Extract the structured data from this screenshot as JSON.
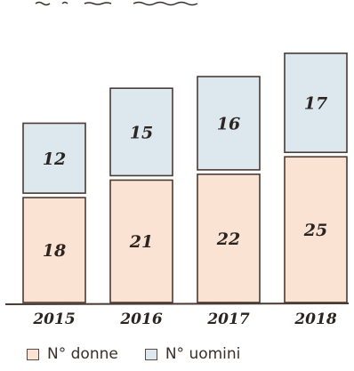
{
  "chart_data": {
    "type": "bar",
    "stacked": true,
    "categories": [
      "2015",
      "2016",
      "2017",
      "2018"
    ],
    "series": [
      {
        "name": "N° donne",
        "values": [
          18,
          21,
          22,
          25
        ],
        "color": "#fbe3d3"
      },
      {
        "name": "N° uomini",
        "values": [
          12,
          15,
          16,
          17
        ],
        "color": "#dce8ee"
      }
    ],
    "legend_position": "bottom-left",
    "grid": false
  }
}
